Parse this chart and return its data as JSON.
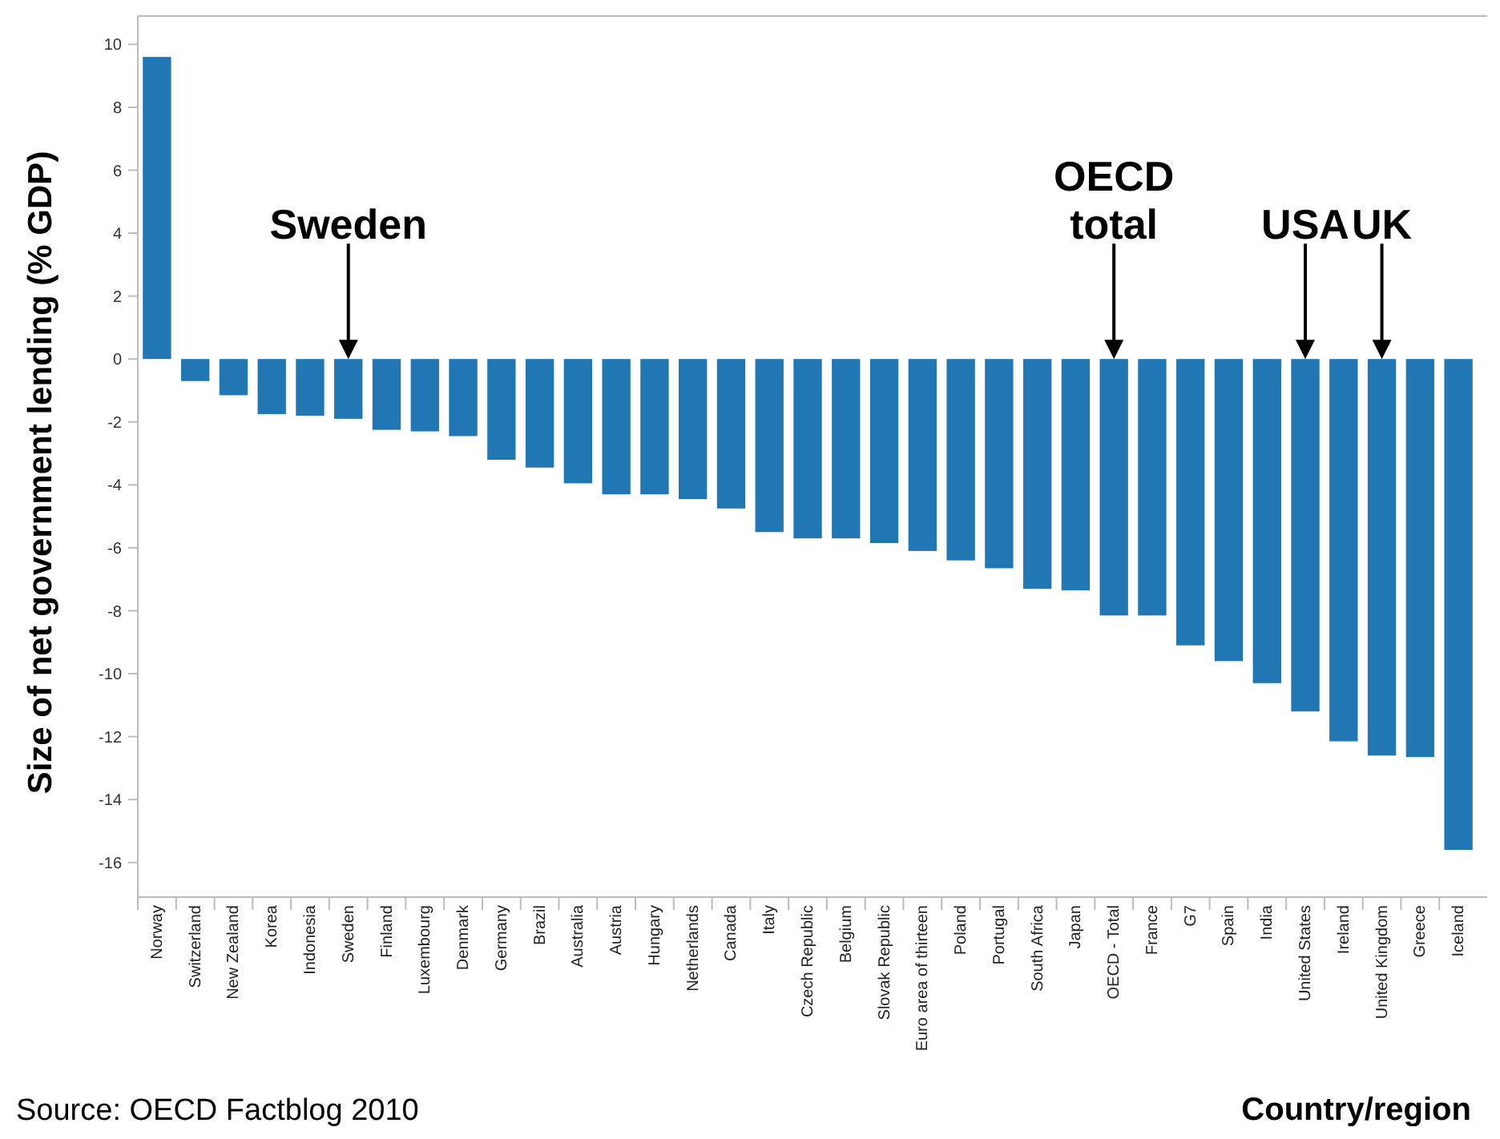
{
  "chart_data": {
    "type": "bar",
    "ylabel": "Size of net government lending (% GDP)",
    "xlabel": "Country/region",
    "categories": [
      "Norway",
      "Switzerland",
      "New Zealand",
      "Korea",
      "Indonesia",
      "Sweden",
      "Finland",
      "Luxembourg",
      "Denmark",
      "Germany",
      "Brazil",
      "Australia",
      "Austria",
      "Hungary",
      "Netherlands",
      "Canada",
      "Italy",
      "Czech Republic",
      "Belgium",
      "Slovak Republic",
      "Euro area of thirteen",
      "Poland",
      "Portugal",
      "South Africa",
      "Japan",
      "OECD - Total",
      "France",
      "G7",
      "Spain",
      "India",
      "United States",
      "Ireland",
      "United Kingdom",
      "Greece",
      "Iceland"
    ],
    "values": [
      9.6,
      -0.7,
      -1.15,
      -1.75,
      -1.8,
      -1.9,
      -2.25,
      -2.3,
      -2.45,
      -3.2,
      -3.45,
      -3.95,
      -4.3,
      -4.3,
      -4.45,
      -4.75,
      -5.5,
      -5.7,
      -5.7,
      -5.85,
      -6.1,
      -6.4,
      -6.65,
      -7.3,
      -7.35,
      -8.15,
      -8.15,
      -9.1,
      -9.6,
      -10.3,
      -11.2,
      -12.15,
      -12.6,
      -12.65,
      -15.6
    ],
    "color": "#2077b4",
    "ylim": [
      -17.1,
      10.9
    ],
    "yticks": [
      -16,
      -14,
      -12,
      -10,
      -8,
      -6,
      -4,
      -2,
      0,
      2,
      4,
      6,
      8,
      10
    ],
    "grid": false,
    "annotations": [
      {
        "text": "Sweden",
        "x": "Sweden",
        "y": 0
      },
      {
        "text": "OECD total",
        "x": "OECD - Total",
        "y": 0
      },
      {
        "text": "USA",
        "x": "United States",
        "y": 0
      },
      {
        "text": "UK",
        "x": "United Kingdom",
        "y": 0
      },
      "Source: OECD Factblog 2010"
    ]
  }
}
